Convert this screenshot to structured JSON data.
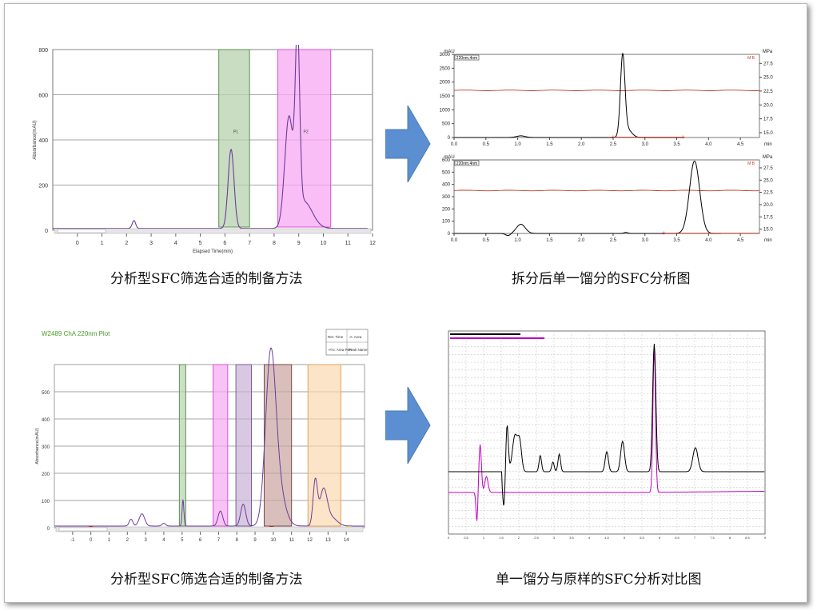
{
  "captions": {
    "top_left": "分析型SFC筛选合适的制备方法",
    "top_right": "拆分后单一馏分的SFC分析图",
    "bottom_left": "分析型SFC筛选合适的制备方法",
    "bottom_right": "单一馏分与原样的SFC分析对比图"
  },
  "colors": {
    "arrow": "#5b8fd1",
    "trace_purple": "#6c3c9b",
    "pressure_red": "#c0392b",
    "green_band": "#b5d1ac",
    "magenta_band": "#f6a8f2",
    "violet_band": "#c7b1d6",
    "brown_band": "#c8a4a0",
    "orange_band": "#fbd8b0"
  },
  "chart_data": [
    {
      "type": "line",
      "id": "top_left",
      "title": "",
      "xlabel": "Elapsed Time(min)",
      "ylabel": "Absorbance(mAU)",
      "xlim": [
        -1,
        12
      ],
      "ylim": [
        0,
        800
      ],
      "xticks": [
        0,
        1,
        2,
        3,
        4,
        5,
        6,
        7,
        8,
        9,
        10,
        11,
        12
      ],
      "yticks": [
        0,
        200,
        400,
        600,
        800
      ],
      "bands": [
        {
          "x0": 5.75,
          "x1": 7.0,
          "color": "green",
          "label": "P1"
        },
        {
          "x0": 8.15,
          "x1": 10.3,
          "color": "magenta",
          "label": "P2"
        }
      ],
      "peaks": [
        {
          "x": 2.3,
          "height": 35
        },
        {
          "x": 6.25,
          "height": 350
        },
        {
          "x": 8.6,
          "height": 470
        },
        {
          "x": 8.95,
          "height": 780
        }
      ]
    },
    {
      "type": "line",
      "id": "top_right_upper",
      "ylabel_left": "mAU",
      "ylabel_right": "MPa",
      "legend": "220nm,4nm",
      "xlim": [
        0,
        4.8
      ],
      "ylim": [
        0,
        3000
      ],
      "yticks": [
        0,
        500,
        1000,
        1500,
        2000,
        2500,
        3000
      ],
      "y2ticks": [
        15.0,
        17.5,
        20.0,
        22.5,
        25.0,
        27.5
      ],
      "xticks": [
        0.0,
        0.5,
        1.0,
        1.5,
        2.0,
        2.5,
        3.0,
        3.5,
        4.0,
        4.5
      ],
      "peaks": [
        {
          "x": 2.65,
          "height": 2850
        }
      ],
      "pressure_level": 1700
    },
    {
      "type": "line",
      "id": "top_right_lower",
      "ylabel_left": "mAU",
      "ylabel_right": "MPa",
      "legend": "220nm,4nm",
      "xlim": [
        0,
        4.8
      ],
      "ylim": [
        0,
        600
      ],
      "yticks": [
        0,
        100,
        200,
        300,
        400,
        500,
        600
      ],
      "y2ticks": [
        15.0,
        17.5,
        20.0,
        22.5,
        25.0,
        27.5
      ],
      "xticks": [
        0.0,
        0.5,
        1.0,
        1.5,
        2.0,
        2.5,
        3.0,
        3.5,
        4.0,
        4.5
      ],
      "peaks": [
        {
          "x": 1.05,
          "height": 75
        },
        {
          "x": 3.78,
          "height": 590
        }
      ],
      "pressure_level": 350
    },
    {
      "type": "line",
      "id": "bottom_left",
      "title": "W2489 ChA 220nm Plot",
      "xlabel": "Elapsed Time(min)",
      "ylabel": "Absorbance(mAU)",
      "xlim": [
        -2,
        15
      ],
      "ylim": [
        0,
        600
      ],
      "xticks": [
        -1,
        0,
        1,
        2,
        3,
        4,
        5,
        6,
        7,
        8,
        9,
        10,
        11,
        12,
        13,
        14
      ],
      "yticks": [
        0,
        100,
        200,
        300,
        400,
        500
      ],
      "legend_table": [
        "Ret. Time",
        "Area",
        "Area Perc",
        "Peak Name"
      ],
      "bands": [
        {
          "x0": 4.85,
          "x1": 5.2,
          "color": "green"
        },
        {
          "x0": 6.7,
          "x1": 7.5,
          "color": "magenta"
        },
        {
          "x0": 7.95,
          "x1": 8.8,
          "color": "violet"
        },
        {
          "x0": 9.5,
          "x1": 11.0,
          "color": "brown"
        },
        {
          "x0": 11.9,
          "x1": 13.7,
          "color": "orange"
        }
      ],
      "peaks": [
        {
          "x": 2.8,
          "height": 45
        },
        {
          "x": 5.05,
          "height": 95
        },
        {
          "x": 7.1,
          "height": 55
        },
        {
          "x": 8.35,
          "height": 80
        },
        {
          "x": 9.9,
          "height": 600
        },
        {
          "x": 12.3,
          "height": 165
        },
        {
          "x": 12.7,
          "height": 130
        }
      ]
    },
    {
      "type": "line",
      "id": "bottom_right",
      "series": [
        {
          "color": "black"
        },
        {
          "color": "magenta"
        }
      ],
      "peaks": [
        6.5
      ]
    }
  ]
}
